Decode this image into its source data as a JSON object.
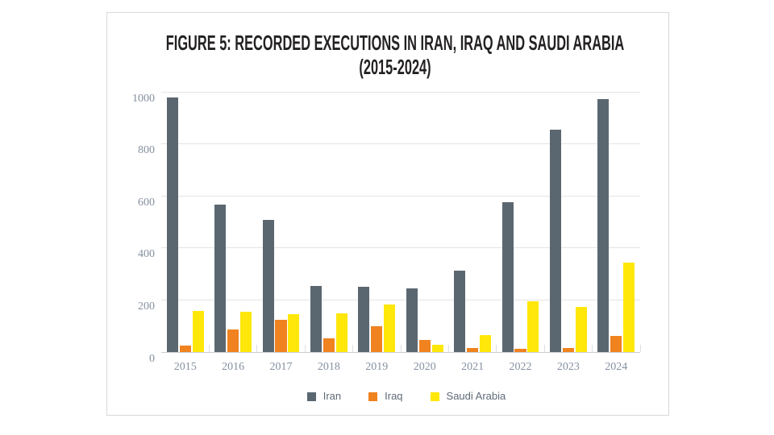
{
  "figure": {
    "title_line1": "FIGURE 5: RECORDED EXECUTIONS IN IRAN, IRAQ AND SAUDI ARABIA",
    "title_line2": "(2015-2024)"
  },
  "chart_data": {
    "type": "bar",
    "title": "FIGURE 5: RECORDED EXECUTIONS IN IRAN, IRAQ AND SAUDI ARABIA (2015-2024)",
    "categories": [
      "2015",
      "2016",
      "2017",
      "2018",
      "2019",
      "2020",
      "2021",
      "2022",
      "2023",
      "2024"
    ],
    "series": [
      {
        "name": "Iran",
        "color": "#5b6770",
        "values": [
          977,
          567,
          507,
          253,
          251,
          246,
          314,
          576,
          853,
          972
        ]
      },
      {
        "name": "Iraq",
        "color": "#f0821f",
        "values": [
          26,
          88,
          125,
          52,
          100,
          45,
          17,
          11,
          16,
          63
        ]
      },
      {
        "name": "Saudi Arabia",
        "color": "#ffe70a",
        "values": [
          158,
          154,
          146,
          149,
          184,
          27,
          65,
          196,
          172,
          345
        ]
      }
    ],
    "xlabel": "",
    "ylabel": "",
    "ylim": [
      0,
      1000
    ],
    "yticks": [
      0,
      200,
      400,
      600,
      800,
      1000
    ],
    "grid": "horizontal",
    "legend_position": "bottom"
  },
  "colors": {
    "card_border": "#d8d8d8",
    "gridline": "#e4e4e4",
    "axis_line": "#c9cdd1",
    "category_tick": "#dddfe2",
    "axis_label": "#8490a0",
    "legend_label": "#5f6a78",
    "title": "#242122",
    "background": "#ffffff"
  }
}
